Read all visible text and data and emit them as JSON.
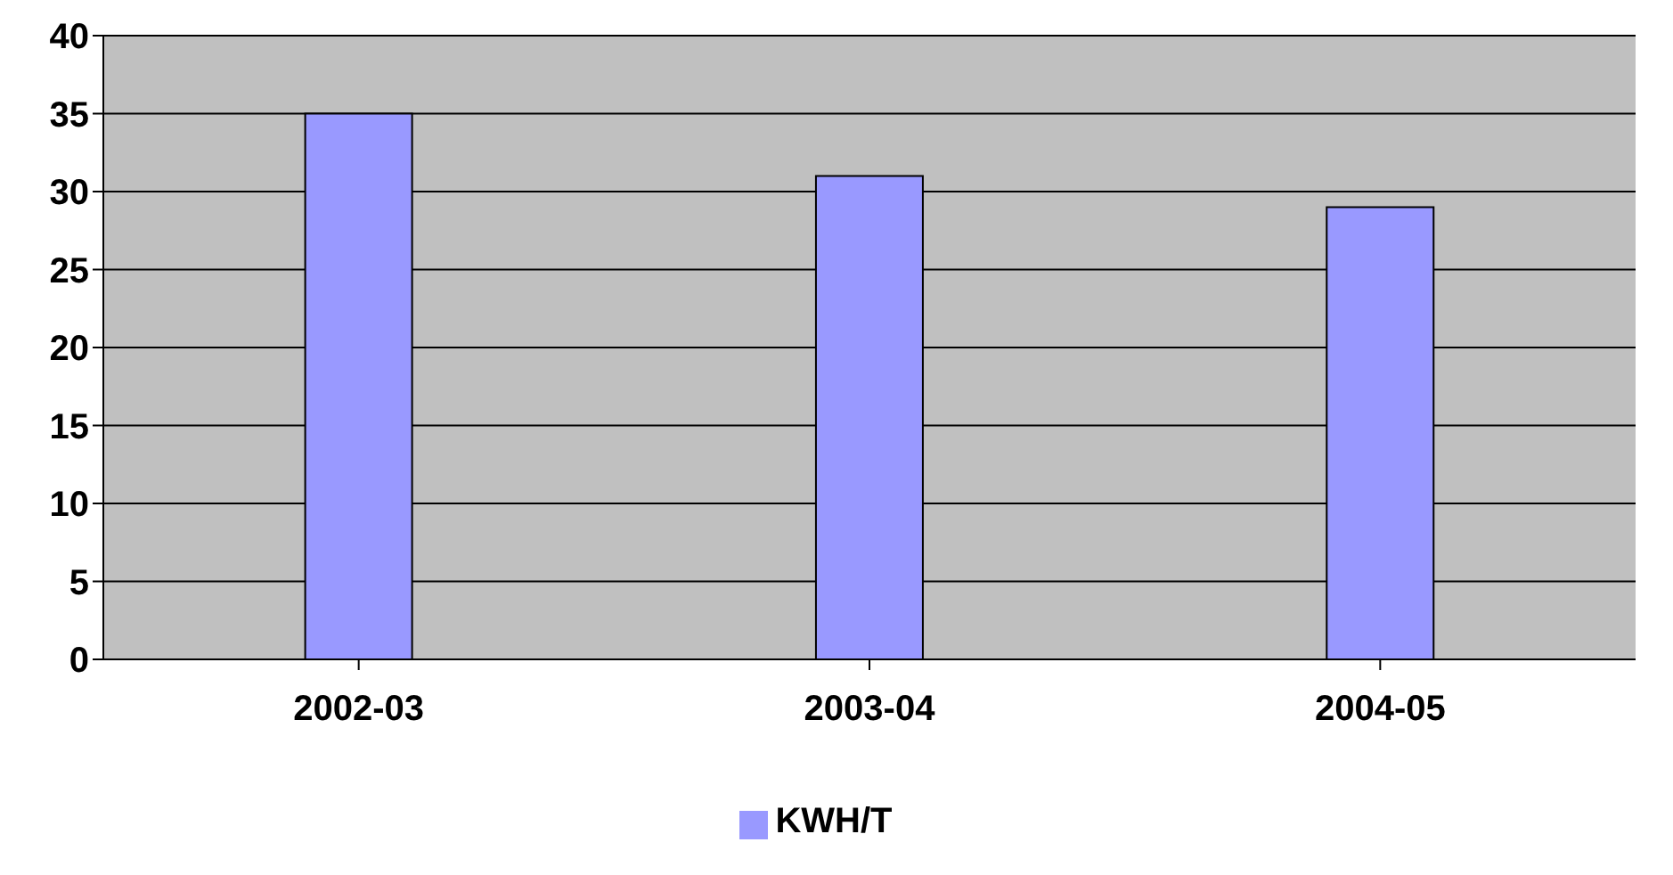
{
  "chart_data": {
    "type": "bar",
    "categories": [
      "2002-03",
      "2003-04",
      "2004-05"
    ],
    "series": [
      {
        "name": "KWH/T",
        "color": "#9999ff",
        "values": [
          35,
          31,
          29
        ]
      }
    ],
    "ylim": [
      0,
      40
    ],
    "yticks": [
      0,
      5,
      10,
      15,
      20,
      25,
      30,
      35,
      40
    ],
    "grid": "y",
    "legend": "bottom"
  }
}
